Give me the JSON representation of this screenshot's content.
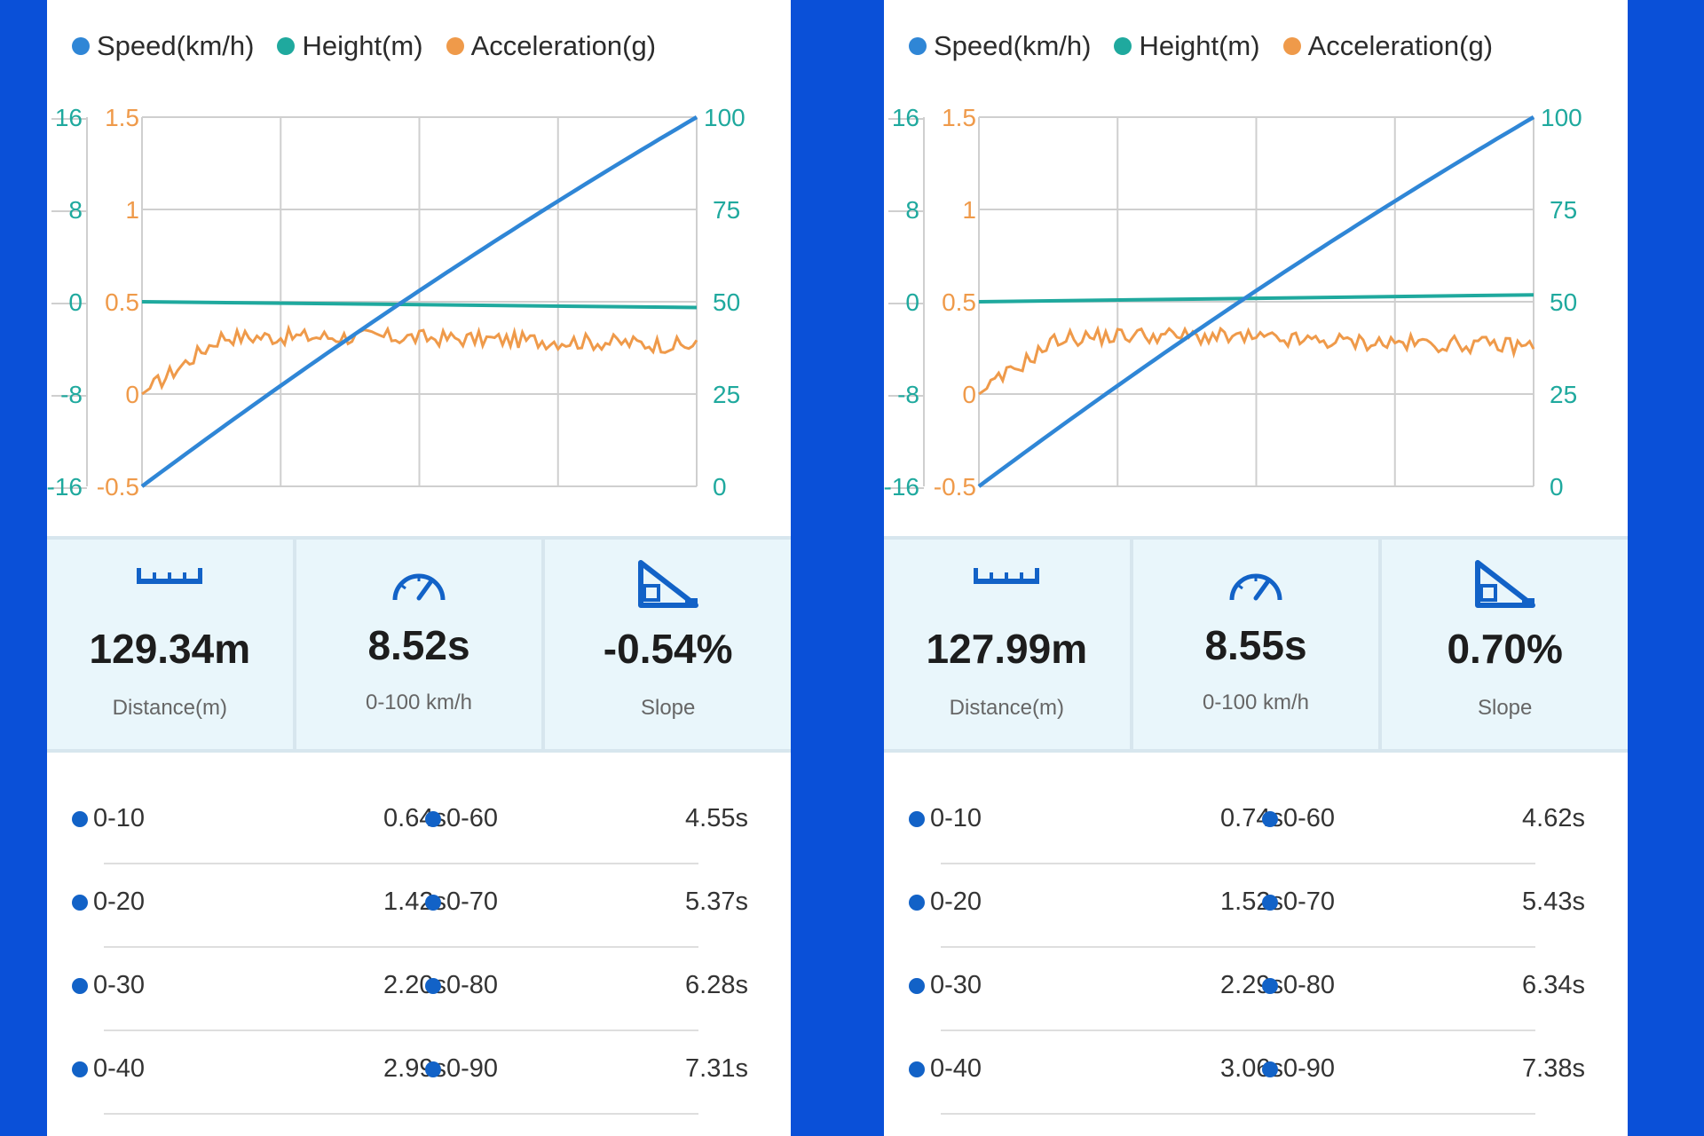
{
  "legend": [
    {
      "label": "Speed(km/h)",
      "color": "#2f86d6"
    },
    {
      "label": "Height(m)",
      "color": "#1fa99e"
    },
    {
      "label": "Acceleration(g)",
      "color": "#ef9a4a"
    }
  ],
  "axes": {
    "height_ticks": [
      "16",
      "8",
      "0",
      "-8",
      "-16"
    ],
    "accel_ticks": [
      "1.5",
      "1",
      "0.5",
      "0",
      "-0.5"
    ],
    "speed_ticks": [
      "100",
      "75",
      "50",
      "25",
      "0"
    ]
  },
  "runs": [
    {
      "chart_data": {
        "type": "line",
        "series": [
          {
            "name": "Speed(km/h)",
            "values": [
              0,
              100
            ]
          },
          {
            "name": "Height(m)",
            "values": [
              0,
              -0.5
            ]
          },
          {
            "name": "Acceleration(g)",
            "values": [
              0,
              0.31,
              0.31,
              0.31,
              0.3,
              0.29,
              0.28,
              0.26
            ]
          }
        ],
        "ylim_speed": [
          0,
          100
        ],
        "ylim_height": [
          -16,
          16
        ],
        "ylim_accel": [
          -0.5,
          1.5
        ]
      },
      "stats": {
        "distance": {
          "value": "129.34m",
          "label": "Distance(m)",
          "icon": "ruler-icon"
        },
        "time": {
          "value": "8.52s",
          "label": "0-100 km/h",
          "icon": "speedometer-icon"
        },
        "slope": {
          "value": "-0.54%",
          "label": "Slope",
          "icon": "slope-icon"
        }
      },
      "times": [
        {
          "l1": "0-10",
          "v1": "0.64s",
          "l2": "0-60",
          "v2": "4.55s"
        },
        {
          "l1": "0-20",
          "v1": "1.42s",
          "l2": "0-70",
          "v2": "5.37s"
        },
        {
          "l1": "0-30",
          "v1": "2.20s",
          "l2": "0-80",
          "v2": "6.28s"
        },
        {
          "l1": "0-40",
          "v1": "2.99s",
          "l2": "0-90",
          "v2": "7.31s"
        }
      ]
    },
    {
      "chart_data": {
        "type": "line",
        "series": [
          {
            "name": "Speed(km/h)",
            "values": [
              0,
              100
            ]
          },
          {
            "name": "Height(m)",
            "values": [
              0,
              0.6
            ]
          },
          {
            "name": "Acceleration(g)",
            "values": [
              0,
              0.3,
              0.32,
              0.31,
              0.29,
              0.28,
              0.27,
              0.26
            ]
          }
        ],
        "ylim_speed": [
          0,
          100
        ],
        "ylim_height": [
          -16,
          16
        ],
        "ylim_accel": [
          -0.5,
          1.5
        ]
      },
      "stats": {
        "distance": {
          "value": "127.99m",
          "label": "Distance(m)",
          "icon": "ruler-icon"
        },
        "time": {
          "value": "8.55s",
          "label": "0-100 km/h",
          "icon": "speedometer-icon"
        },
        "slope": {
          "value": "0.70%",
          "label": "Slope",
          "icon": "slope-icon"
        }
      },
      "times": [
        {
          "l1": "0-10",
          "v1": "0.74s",
          "l2": "0-60",
          "v2": "4.62s"
        },
        {
          "l1": "0-20",
          "v1": "1.52s",
          "l2": "0-70",
          "v2": "5.43s"
        },
        {
          "l1": "0-30",
          "v1": "2.29s",
          "l2": "0-80",
          "v2": "6.34s"
        },
        {
          "l1": "0-40",
          "v1": "3.06s",
          "l2": "0-90",
          "v2": "7.38s"
        }
      ]
    }
  ]
}
